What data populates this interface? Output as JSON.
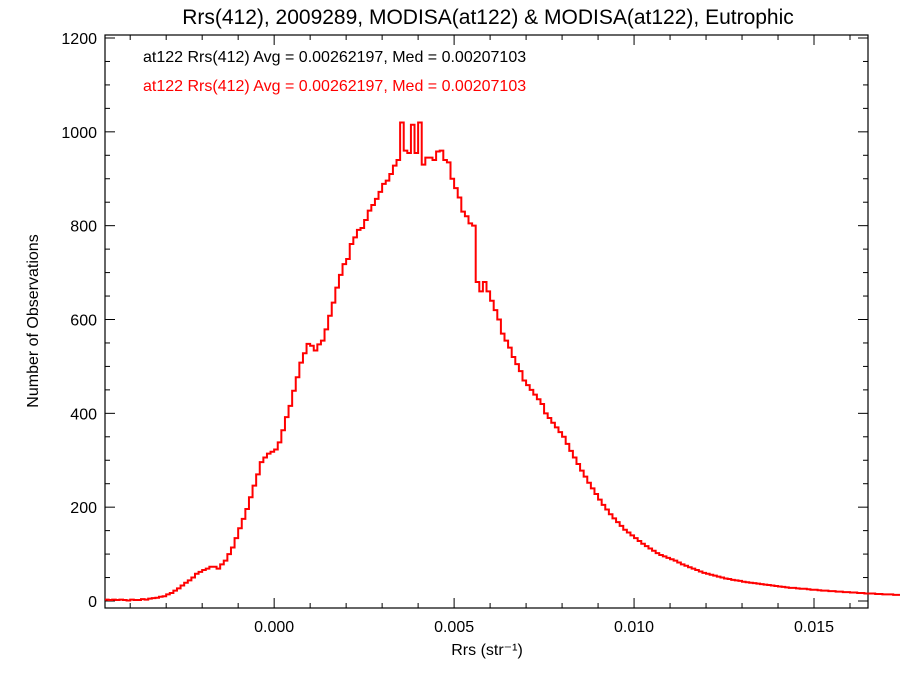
{
  "chart_data": {
    "type": "histogram",
    "title": "Rrs(412), 2009289, MODISA(at122) & MODISA(at122), Eutrophic",
    "xlabel": "Rrs (str⁻¹)",
    "ylabel": "Number of Observations",
    "xlim": [
      -0.0047,
      0.0165
    ],
    "ylim": [
      0,
      1200
    ],
    "xticks": [
      0.0,
      0.005,
      0.01,
      0.015
    ],
    "xtick_labels": [
      "0.000",
      "0.005",
      "0.010",
      "0.015"
    ],
    "yticks": [
      0,
      200,
      400,
      600,
      800,
      1000,
      1200
    ],
    "ytick_labels": [
      "0",
      "200",
      "400",
      "600",
      "800",
      "1000",
      "1200"
    ],
    "grid": false,
    "annotations": [
      {
        "text": "at122 Rrs(412) Avg = 0.00262197, Med = 0.00207103",
        "color": "#000000"
      },
      {
        "text": "at122 Rrs(412) Avg = 0.00262197, Med = 0.00207103",
        "color": "#ff0000"
      }
    ],
    "series": [
      {
        "color": "#ff0000",
        "bin_width": 0.0001,
        "x_start": -0.0047,
        "values": [
          3,
          2,
          3,
          2,
          3,
          2,
          1,
          3,
          2,
          2,
          4,
          3,
          5,
          6,
          7,
          9,
          10,
          14,
          17,
          22,
          27,
          33,
          39,
          44,
          50,
          58,
          62,
          66,
          69,
          73,
          73,
          69,
          78,
          86,
          100,
          114,
          134,
          155,
          175,
          196,
          221,
          246,
          270,
          296,
          306,
          314,
          318,
          323,
          338,
          364,
          392,
          416,
          448,
          477,
          508,
          528,
          548,
          544,
          534,
          547,
          555,
          579,
          608,
          636,
          668,
          695,
          718,
          729,
          761,
          775,
          791,
          795,
          812,
          832,
          844,
          857,
          872,
          889,
          896,
          910,
          928,
          940,
          1020,
          960,
          955,
          1015,
          955,
          1020,
          930,
          945,
          945,
          940,
          958,
          960,
          940,
          935,
          900,
          880,
          860,
          830,
          820,
          805,
          800,
          680,
          660,
          680,
          660,
          640,
          620,
          600,
          570,
          555,
          540,
          520,
          505,
          490,
          470,
          460,
          450,
          440,
          430,
          420,
          400,
          390,
          380,
          370,
          360,
          350,
          335,
          320,
          306,
          292,
          278,
          265,
          252,
          240,
          228,
          216,
          205,
          195,
          185,
          176,
          168,
          160,
          152,
          146,
          140,
          134,
          128,
          122,
          117,
          112,
          107,
          102,
          98,
          95,
          92,
          89,
          86,
          82,
          78,
          75,
          72,
          69,
          66,
          63,
          60,
          58,
          56,
          54,
          52,
          50,
          48,
          47,
          45,
          44,
          43,
          41,
          40,
          39,
          38,
          37,
          36,
          35,
          34,
          33,
          32,
          31,
          30,
          29,
          28,
          28,
          27,
          26,
          26,
          25,
          24,
          24,
          23,
          22,
          22,
          21,
          21,
          20,
          20,
          19,
          19,
          18,
          18,
          17,
          17,
          16,
          16,
          16,
          15,
          15,
          14,
          14,
          14,
          13,
          13,
          13,
          12,
          12,
          12,
          11,
          11,
          11,
          10,
          10,
          10,
          10,
          9,
          9,
          9,
          9,
          8,
          8,
          8,
          8,
          7,
          7,
          7,
          7,
          6,
          6,
          6,
          6,
          6,
          5,
          5,
          5,
          5
        ]
      }
    ]
  }
}
